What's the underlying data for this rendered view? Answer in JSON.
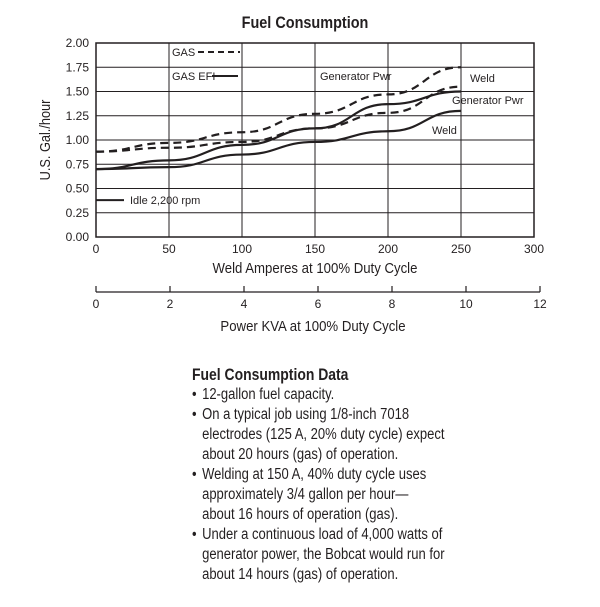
{
  "chart_data": {
    "type": "line",
    "title": "Fuel Consumption",
    "ylabel": "U.S. Gal./hour",
    "xlabel": "Weld Amperes at 100% Duty Cycle",
    "xlabel2": "Power KVA at 100% Duty Cycle",
    "xlim": [
      0,
      300
    ],
    "ylim": [
      0,
      2.0
    ],
    "x2lim": [
      0,
      12
    ],
    "xticks": [
      "0",
      "50",
      "100",
      "150",
      "200",
      "250",
      "300"
    ],
    "yticks": [
      "0.00",
      "0.25",
      "0.50",
      "0.75",
      "1.00",
      "1.25",
      "1.50",
      "1.75",
      "2.00"
    ],
    "x2ticks": [
      "0",
      "2",
      "4",
      "6",
      "8",
      "10",
      "12"
    ],
    "grid": true,
    "legend": [
      {
        "name": "GAS",
        "style": "dashed"
      },
      {
        "name": "GAS EFI",
        "style": "solid"
      }
    ],
    "idle_label": "Idle 2,200 rpm",
    "idle_value": 0.38,
    "x": [
      0,
      50,
      100,
      150,
      200,
      250
    ],
    "series": [
      {
        "name": "Generator Pwr",
        "fuel": "GAS",
        "style": "dashed",
        "values": [
          0.88,
          0.97,
          1.08,
          1.27,
          1.47,
          1.75
        ]
      },
      {
        "name": "Weld",
        "fuel": "GAS",
        "style": "dashed",
        "values": [
          0.88,
          0.92,
          0.98,
          1.12,
          1.28,
          1.55
        ]
      },
      {
        "name": "Generator Pwr",
        "fuel": "GAS EFI",
        "style": "solid",
        "values": [
          0.7,
          0.79,
          0.95,
          1.12,
          1.37,
          1.5
        ]
      },
      {
        "name": "Weld",
        "fuel": "GAS EFI",
        "style": "solid",
        "values": [
          0.7,
          0.72,
          0.85,
          0.98,
          1.09,
          1.3
        ]
      }
    ]
  },
  "notes": {
    "heading": "Fuel Consumption Data",
    "bullets": [
      [
        "12-gallon fuel capacity."
      ],
      [
        "On a typical job using 1/8-inch 7018",
        "electrodes (125 A, 20% duty cycle) expect",
        "about 20 hours (gas) of operation."
      ],
      [
        "Welding at 150 A, 40% duty cycle uses",
        "approximately 3/4 gallon per hour—",
        "about 16 hours of operation (gas)."
      ],
      [
        "Under a continuous load of 4,000 watts of",
        "generator power, the Bobcat would run for",
        "about 14 hours (gas) of operation."
      ]
    ]
  }
}
